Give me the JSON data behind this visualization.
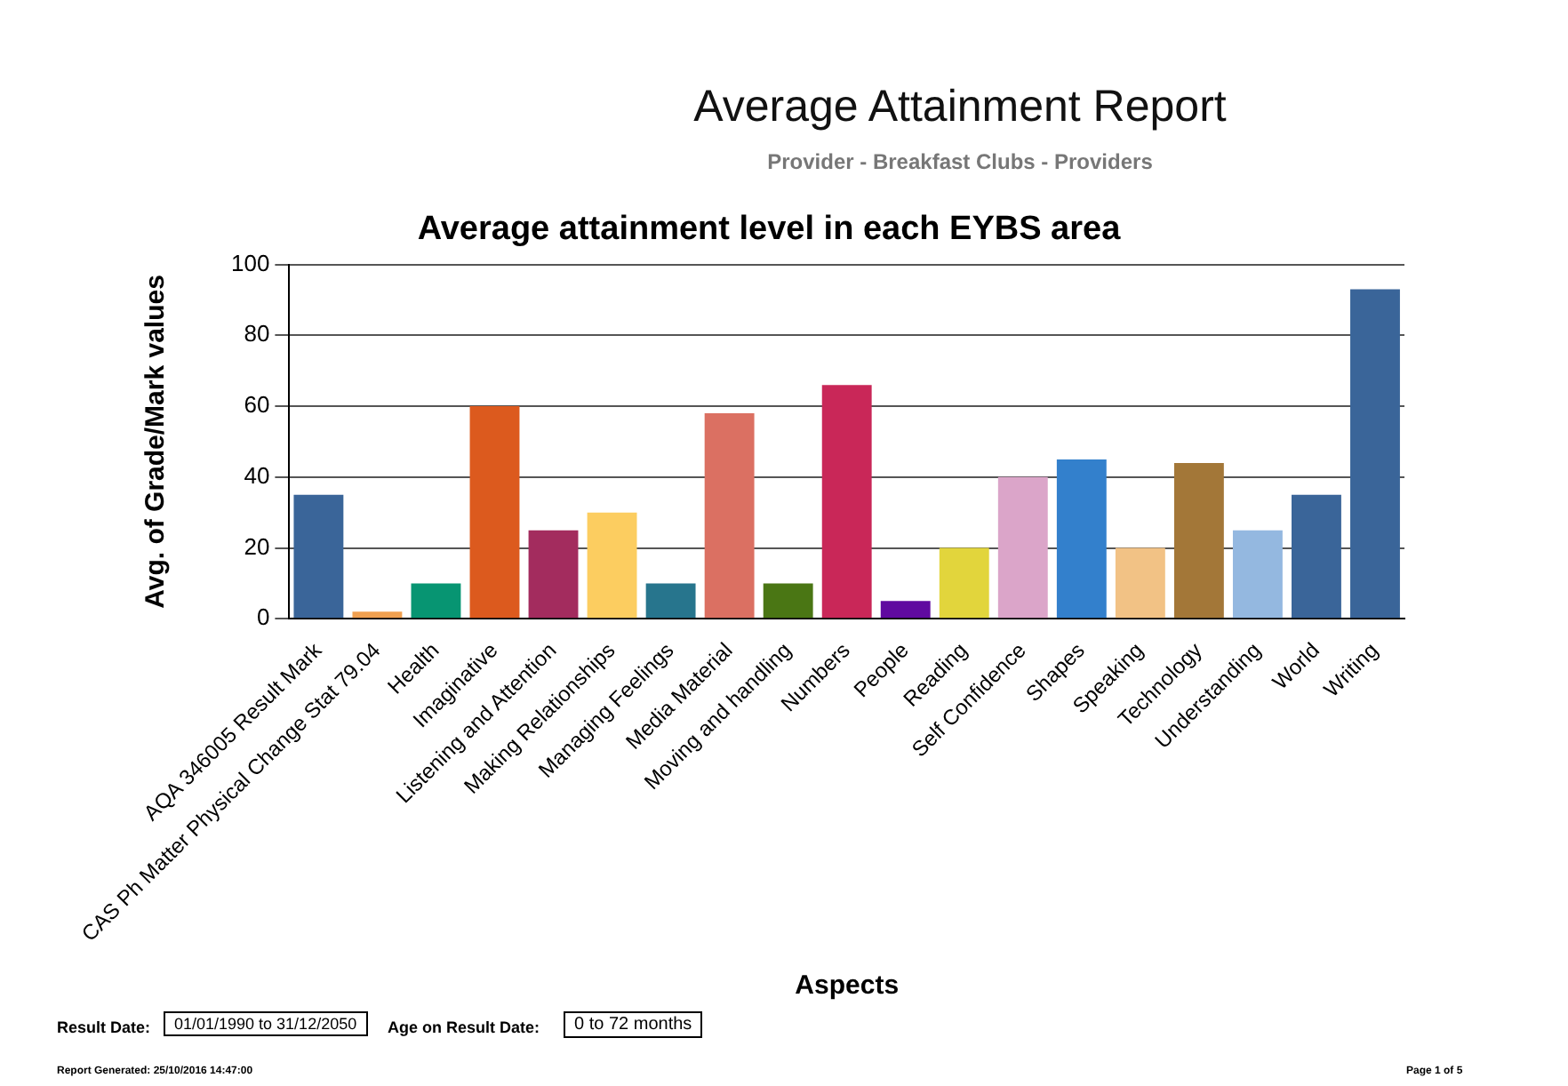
{
  "chart_data": {
    "type": "bar",
    "title": "Average attainment level in each EYBS area",
    "xlabel": "Aspects",
    "ylabel": "Avg. of Grade/Mark values",
    "categories": [
      "AQA 346005 Result Mark",
      "CAS Ph Matter Physical Change Stat 79.04",
      "Health",
      "Imaginative",
      "Listening and Attention",
      "Making Relationships",
      "Managing Feelings",
      "Media Material",
      "Moving and handling",
      "Numbers",
      "People",
      "Reading",
      "Self Confidence",
      "Shapes",
      "Speaking",
      "Technology",
      "Understanding",
      "World",
      "Writing"
    ],
    "values": [
      35,
      2,
      10,
      60,
      25,
      30,
      10,
      58,
      10,
      66,
      5,
      20,
      40,
      45,
      20,
      44,
      25,
      35,
      93
    ],
    "colors": [
      "#3a6599",
      "#f0a050",
      "#079572",
      "#dc5a1e",
      "#a32c5e",
      "#fccd60",
      "#27758d",
      "#db7062",
      "#4a7614",
      "#c92758",
      "#600aa0",
      "#e2d53c",
      "#dba5c9",
      "#3380cc",
      "#f2c285",
      "#a37738",
      "#94b8e0",
      "#3a6599",
      "#3a6599"
    ],
    "ylim": [
      0,
      100
    ],
    "yticks": [
      0,
      20,
      40,
      60,
      80,
      100
    ],
    "grid": "y",
    "legend": false,
    "annotations": [
      "Average Attainment Report",
      "Provider - Breakfast Clubs - Providers",
      "Result Date:",
      "01/01/1990 to 31/12/2050",
      "Age on Result Date:",
      "0 to 72 months",
      "Report Generated: 25/10/2016 14:47:00",
      "Page 1 of 5"
    ]
  }
}
